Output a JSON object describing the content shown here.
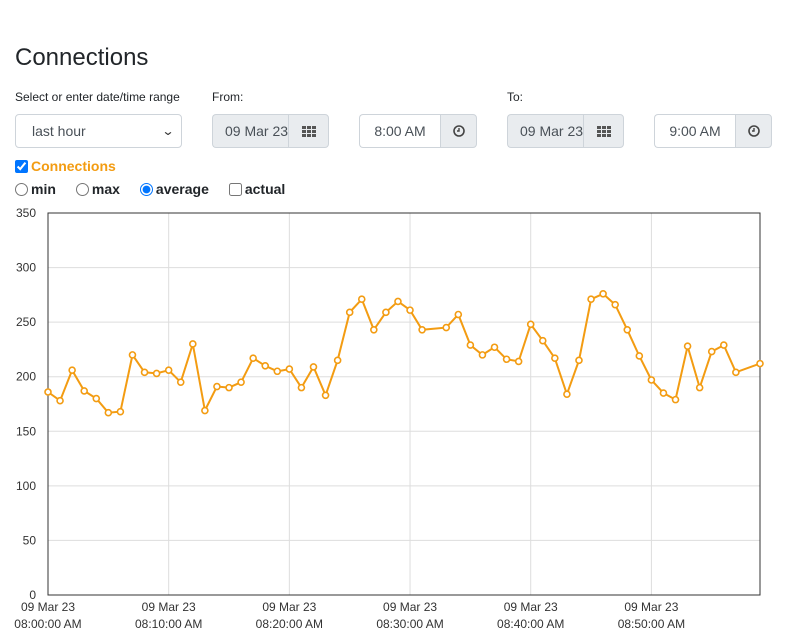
{
  "page": {
    "title": "Connections"
  },
  "controls": {
    "range_label": "Select or enter date/time range",
    "range_selected": "last hour",
    "from_label": "From:",
    "from_date": "09 Mar 23",
    "from_time": "8:00 AM",
    "to_label": "To:",
    "to_date": "09 Mar 23",
    "to_time": "9:00 AM",
    "calendar_icon": "calendar-grid-icon",
    "clock_icon": "clock-icon"
  },
  "series_toggle": {
    "label": "Connections",
    "checked": true,
    "color": "#f39c12"
  },
  "modes": {
    "options": [
      {
        "label": "min",
        "selected": false,
        "kind": "radio"
      },
      {
        "label": "max",
        "selected": false,
        "kind": "radio"
      },
      {
        "label": "average",
        "selected": true,
        "kind": "radio"
      },
      {
        "label": "actual",
        "selected": false,
        "kind": "checkbox"
      }
    ]
  },
  "chart_data": {
    "type": "line",
    "title": "",
    "xlabel": "",
    "ylabel": "",
    "ylim": [
      0,
      350
    ],
    "yticks": [
      "0",
      "50",
      "100",
      "150",
      "200",
      "250",
      "300",
      "350"
    ],
    "xlim_minutes": [
      0,
      59
    ],
    "grid": true,
    "line_color": "#f39c12",
    "xticks": [
      {
        "minute": 0,
        "date": "09 Mar 23",
        "time": "08:00:00 AM"
      },
      {
        "minute": 10,
        "date": "09 Mar 23",
        "time": "08:10:00 AM"
      },
      {
        "minute": 20,
        "date": "09 Mar 23",
        "time": "08:20:00 AM"
      },
      {
        "minute": 30,
        "date": "09 Mar 23",
        "time": "08:30:00 AM"
      },
      {
        "minute": 40,
        "date": "09 Mar 23",
        "time": "08:40:00 AM"
      },
      {
        "minute": 50,
        "date": "09 Mar 23",
        "time": "08:50:00 AM"
      }
    ],
    "series": [
      {
        "x_minutes": [
          0,
          1,
          2,
          3,
          4,
          5,
          6,
          7,
          8,
          9,
          10,
          11,
          12,
          13,
          14,
          15,
          16,
          17,
          18,
          19,
          20,
          21,
          22,
          23,
          24,
          25,
          26,
          27,
          28,
          29,
          30,
          31,
          33,
          34,
          35,
          36,
          37,
          38,
          39,
          40,
          41,
          42,
          43,
          44,
          45,
          46,
          47,
          48,
          49,
          50,
          51,
          52,
          53,
          54,
          55,
          56,
          57,
          59
        ],
        "values": [
          186,
          178,
          206,
          187,
          180,
          167,
          168,
          220,
          204,
          203,
          206,
          195,
          230,
          169,
          191,
          190,
          195,
          217,
          210,
          205,
          207,
          190,
          209,
          183,
          215,
          259,
          271,
          243,
          259,
          269,
          261,
          243,
          245,
          257,
          229,
          220,
          227,
          216,
          214,
          248,
          233,
          217,
          184,
          215,
          271,
          276,
          266,
          243,
          219,
          197,
          185,
          179,
          228,
          190,
          223,
          229,
          204,
          212
        ]
      }
    ]
  }
}
